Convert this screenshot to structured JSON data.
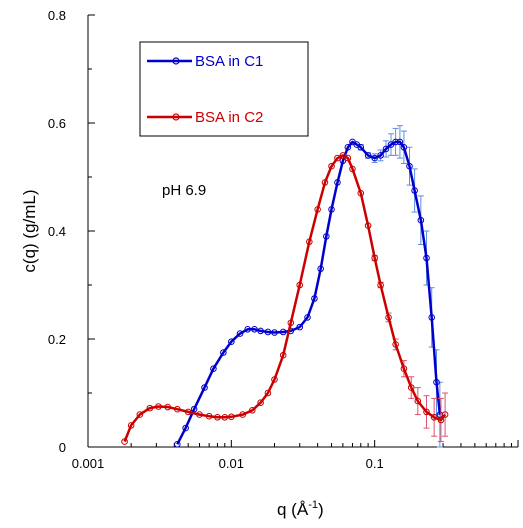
{
  "chart_data": {
    "type": "line",
    "xscale": "log",
    "xlim": [
      0.001,
      1
    ],
    "ylim": [
      0,
      0.8
    ],
    "xticks": [
      {
        "value": 0.001,
        "label": "0.001"
      },
      {
        "value": 0.01,
        "label": "0.01"
      },
      {
        "value": 0.1,
        "label": "0.1"
      }
    ],
    "yticks": [
      {
        "value": 0,
        "label": "0"
      },
      {
        "value": 0.2,
        "label": "0.2"
      },
      {
        "value": 0.4,
        "label": "0.4"
      },
      {
        "value": 0.6,
        "label": "0.6"
      },
      {
        "value": 0.8,
        "label": "0.8"
      }
    ],
    "xlabel": {
      "main": "q  (Å",
      "sup": "-1",
      "close": ")"
    },
    "ylabel": "c(q)   (g/mL)",
    "annotation": "pH 6.9",
    "legend_position": "top-left",
    "series": [
      {
        "name": "BSA in C1",
        "color": "#0000cc",
        "error_color": "#5b8fe0",
        "x": [
          0.0042,
          0.0048,
          0.0055,
          0.0065,
          0.0075,
          0.0088,
          0.01,
          0.0115,
          0.013,
          0.0145,
          0.016,
          0.018,
          0.02,
          0.023,
          0.026,
          0.03,
          0.034,
          0.038,
          0.042,
          0.046,
          0.05,
          0.055,
          0.06,
          0.065,
          0.07,
          0.075,
          0.08,
          0.09,
          0.1,
          0.11,
          0.12,
          0.13,
          0.14,
          0.15,
          0.16,
          0.175,
          0.19,
          0.21,
          0.23,
          0.25,
          0.27,
          0.285
        ],
        "y": [
          0.005,
          0.035,
          0.07,
          0.11,
          0.145,
          0.175,
          0.195,
          0.21,
          0.218,
          0.218,
          0.215,
          0.213,
          0.212,
          0.213,
          0.215,
          0.222,
          0.24,
          0.275,
          0.33,
          0.39,
          0.44,
          0.49,
          0.53,
          0.555,
          0.565,
          0.56,
          0.555,
          0.54,
          0.535,
          0.54,
          0.552,
          0.56,
          0.565,
          0.565,
          0.555,
          0.52,
          0.475,
          0.42,
          0.35,
          0.24,
          0.12,
          0.06
        ],
        "err": [
          0,
          0,
          0,
          0,
          0,
          0,
          0,
          0,
          0,
          0,
          0,
          0,
          0,
          0,
          0,
          0,
          0,
          0,
          0,
          0,
          0,
          0,
          0,
          0,
          0,
          0,
          0.005,
          0.005,
          0.008,
          0.01,
          0.015,
          0.02,
          0.025,
          0.03,
          0.03,
          0.035,
          0.04,
          0.045,
          0.05,
          0.055,
          0.06,
          0.06
        ]
      },
      {
        "name": "BSA in C2",
        "color": "#cc0000",
        "error_color": "#e0506e",
        "x": [
          0.0018,
          0.002,
          0.0023,
          0.0027,
          0.0031,
          0.0036,
          0.0042,
          0.005,
          0.006,
          0.007,
          0.008,
          0.009,
          0.01,
          0.012,
          0.014,
          0.016,
          0.018,
          0.02,
          0.023,
          0.026,
          0.03,
          0.035,
          0.04,
          0.045,
          0.05,
          0.055,
          0.06,
          0.065,
          0.07,
          0.08,
          0.09,
          0.1,
          0.11,
          0.125,
          0.14,
          0.16,
          0.18,
          0.2,
          0.23,
          0.26,
          0.29,
          0.31
        ],
        "y": [
          0.01,
          0.04,
          0.06,
          0.072,
          0.075,
          0.074,
          0.07,
          0.065,
          0.06,
          0.057,
          0.055,
          0.055,
          0.056,
          0.06,
          0.068,
          0.082,
          0.1,
          0.125,
          0.17,
          0.23,
          0.3,
          0.38,
          0.44,
          0.49,
          0.52,
          0.535,
          0.54,
          0.535,
          0.515,
          0.47,
          0.41,
          0.35,
          0.3,
          0.24,
          0.19,
          0.145,
          0.11,
          0.085,
          0.065,
          0.055,
          0.05,
          0.06
        ],
        "err": [
          0,
          0,
          0,
          0,
          0,
          0,
          0,
          0,
          0,
          0,
          0,
          0,
          0,
          0,
          0,
          0,
          0,
          0,
          0,
          0,
          0,
          0,
          0,
          0,
          0,
          0,
          0,
          0,
          0,
          0,
          0,
          0.005,
          0.005,
          0.008,
          0.01,
          0.015,
          0.02,
          0.025,
          0.03,
          0.035,
          0.04,
          0.04
        ]
      }
    ]
  }
}
